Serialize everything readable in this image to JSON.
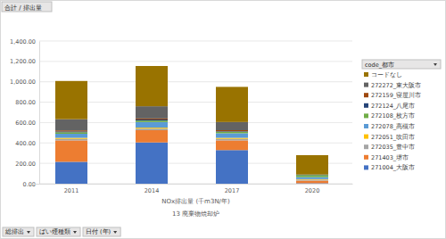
{
  "chart_data": {
    "type": "bar",
    "stacked": true,
    "title": "合計 / 排出量",
    "x_label": "NOx排出量 (千m3N/年)",
    "annotations": [
      "13 廃棄物焼却炉"
    ],
    "filters": [
      "総排出",
      "ばい煙種類",
      "日付 (年)"
    ],
    "legend_title": "code_都市",
    "legend": "right",
    "grid": true,
    "categories": [
      "2011",
      "2014",
      "2017",
      "2020"
    ],
    "ylim": [
      0,
      1400
    ],
    "yticks": [
      {
        "value": 0,
        "label": "0.00"
      },
      {
        "value": 200,
        "label": "200.00"
      },
      {
        "value": 400,
        "label": "400.00"
      },
      {
        "value": 600,
        "label": "600.00"
      },
      {
        "value": 800,
        "label": "800.00"
      },
      {
        "value": 1000,
        "label": "1,000.00"
      },
      {
        "value": 1200,
        "label": "1,200.00"
      },
      {
        "value": 1400,
        "label": "1,400.00"
      }
    ],
    "series": [
      {
        "name": "271004_大阪市",
        "color": "#4472c4",
        "values": [
          215,
          405,
          330,
          5
        ]
      },
      {
        "name": "271403_堺市",
        "color": "#ed7d31",
        "values": [
          210,
          120,
          95,
          25
        ]
      },
      {
        "name": "272035_豊中市",
        "color": "#a5a5a5",
        "values": [
          15,
          15,
          15,
          10
        ]
      },
      {
        "name": "272051_吹田市",
        "color": "#ffc000",
        "values": [
          10,
          10,
          10,
          5
        ]
      },
      {
        "name": "272078_高槻市",
        "color": "#5b9bd5",
        "values": [
          40,
          55,
          45,
          20
        ]
      },
      {
        "name": "272108_枚方市",
        "color": "#70ad47",
        "values": [
          15,
          15,
          15,
          20
        ]
      },
      {
        "name": "272124_八尾市",
        "color": "#264478",
        "values": [
          8,
          10,
          5,
          5
        ]
      },
      {
        "name": "272159_寝屋川市",
        "color": "#9e480e",
        "values": [
          10,
          10,
          10,
          0
        ]
      },
      {
        "name": "272272_東大阪市",
        "color": "#636363",
        "values": [
          110,
          120,
          80,
          0
        ]
      },
      {
        "name": "コードなし",
        "color": "#997300",
        "values": [
          375,
          395,
          345,
          190
        ]
      }
    ]
  }
}
